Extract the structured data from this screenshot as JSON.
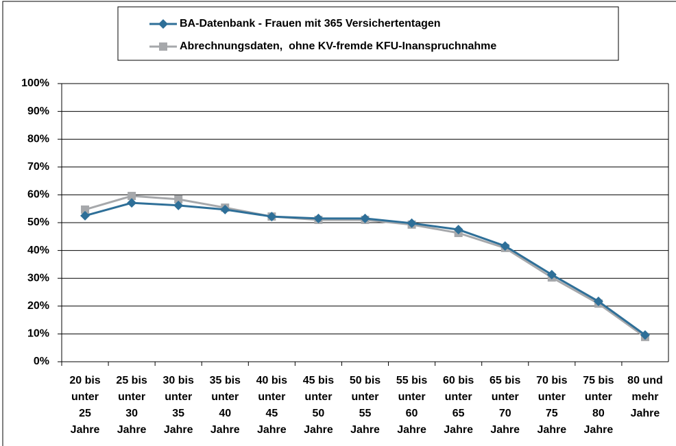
{
  "chart_data": {
    "type": "line",
    "categories": [
      "20 bis unter 25 Jahre",
      "25 bis unter 30 Jahre",
      "30 bis unter 35 Jahre",
      "35 bis unter 40 Jahre",
      "40 bis unter 45 Jahre",
      "45 bis unter 50 Jahre",
      "50 bis unter 55 Jahre",
      "55 bis unter 60 Jahre",
      "60 bis unter 65 Jahre",
      "65 bis unter 70 Jahre",
      "70 bis unter 75 Jahre",
      "75 bis unter 80 Jahre",
      "80 und mehr Jahre"
    ],
    "series": [
      {
        "name": "BA-Datenbank - Frauen mit 365 Versichertentagen",
        "color": "#2e6f98",
        "marker": "diamond",
        "values": [
          52.5,
          57.1,
          56.2,
          54.7,
          52.2,
          51.5,
          51.5,
          49.8,
          47.5,
          41.6,
          31.3,
          21.7,
          9.6
        ]
      },
      {
        "name": "Abrechnungsdaten,  ohne KV-fremde KFU-Inanspruchnahme",
        "color": "#a6a8ab",
        "marker": "square",
        "values": [
          54.7,
          59.6,
          58.4,
          55.4,
          52.2,
          51.0,
          51.0,
          49.3,
          46.3,
          40.9,
          30.3,
          20.9,
          8.9
        ]
      }
    ],
    "ylim": [
      0,
      100
    ],
    "yticks": [
      {
        "value": 0,
        "label": "0%"
      },
      {
        "value": 10,
        "label": "10%"
      },
      {
        "value": 20,
        "label": "20%"
      },
      {
        "value": 30,
        "label": "30%"
      },
      {
        "value": 40,
        "label": "40%"
      },
      {
        "value": 50,
        "label": "50%"
      },
      {
        "value": 60,
        "label": "60%"
      },
      {
        "value": 70,
        "label": "70%"
      },
      {
        "value": 80,
        "label": "80%"
      },
      {
        "value": 90,
        "label": "90%"
      },
      {
        "value": 100,
        "label": "100%"
      }
    ],
    "grid": true,
    "legend": "top"
  }
}
